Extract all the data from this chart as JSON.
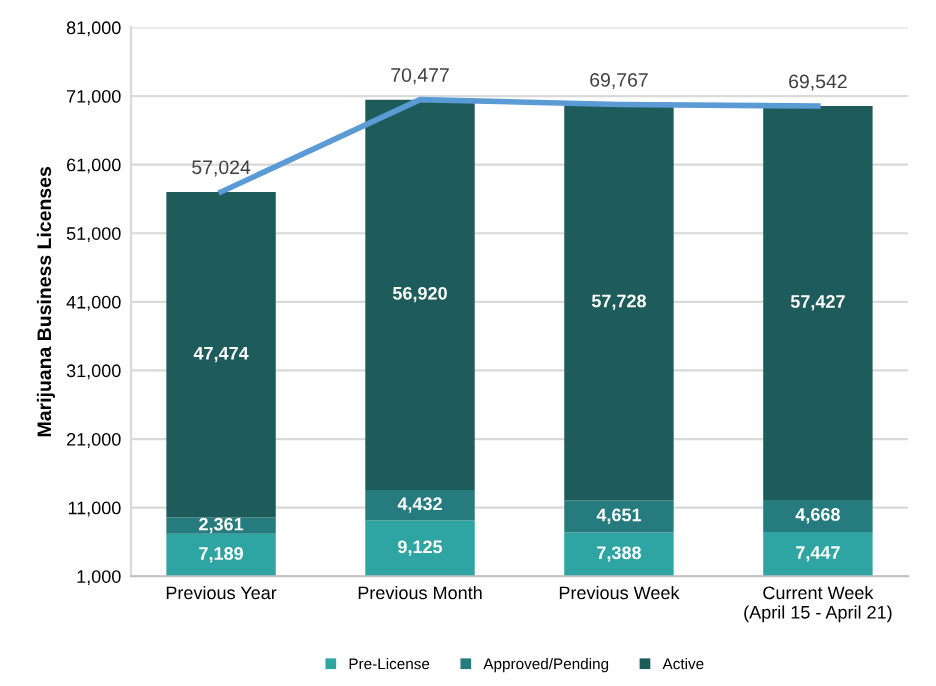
{
  "chart_data": {
    "type": "bar",
    "stacked": true,
    "ylabel": "Marijuana Business Licenses",
    "categories": [
      "Previous Year",
      "Previous Month",
      "Previous Week",
      "Current Week\n(April 15 - April 21)"
    ],
    "series": [
      {
        "name": "Pre-License",
        "color": "#2ea5a3",
        "values": [
          7189,
          9125,
          7388,
          7447
        ],
        "value_labels": [
          "7,189",
          "9,125",
          "7,388",
          "7,447"
        ]
      },
      {
        "name": "Approved/Pending",
        "color": "#257b7d",
        "values": [
          2361,
          4432,
          4651,
          4668
        ],
        "value_labels": [
          "2,361",
          "4,432",
          "4,651",
          "4,668"
        ]
      },
      {
        "name": "Active",
        "color": "#1e5c5b",
        "values": [
          47474,
          56920,
          57728,
          57427
        ],
        "value_labels": [
          "47,474",
          "56,920",
          "57,728",
          "57,427"
        ]
      },
      {
        "type": "line",
        "color": "#5b9bd5",
        "values": [
          57024,
          70477,
          69767,
          69542
        ],
        "value_labels": [
          "57,024",
          "70,477",
          "69,767",
          "69,542"
        ]
      }
    ],
    "ylim": [
      1000,
      81000
    ],
    "yticks": [
      {
        "value": 1000,
        "label": "1,000"
      },
      {
        "value": 11000,
        "label": "11,000"
      },
      {
        "value": 21000,
        "label": "21,000"
      },
      {
        "value": 31000,
        "label": "31,000"
      },
      {
        "value": 41000,
        "label": "41,000"
      },
      {
        "value": 51000,
        "label": "51,000"
      },
      {
        "value": 61000,
        "label": "61,000"
      },
      {
        "value": 71000,
        "label": "71,000"
      },
      {
        "value": 81000,
        "label": "81,000"
      }
    ],
    "grid": "y",
    "legend": "bottom"
  }
}
